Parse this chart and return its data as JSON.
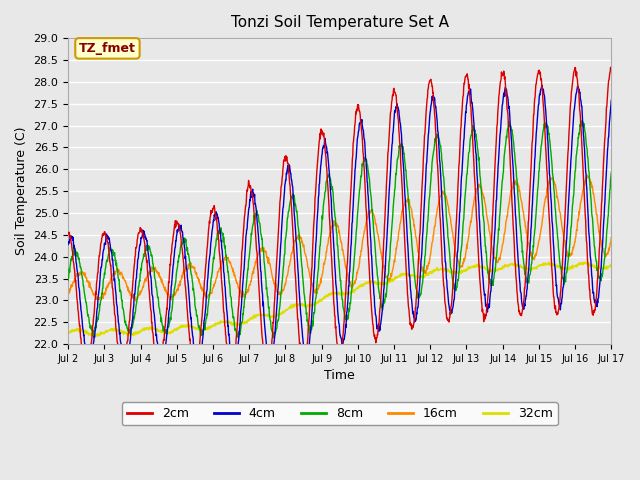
{
  "title": "Tonzi Soil Temperature Set A",
  "xlabel": "Time",
  "ylabel": "Soil Temperature (C)",
  "ylim": [
    22.0,
    29.0
  ],
  "yticks": [
    22.0,
    22.5,
    23.0,
    23.5,
    24.0,
    24.5,
    25.0,
    25.5,
    26.0,
    26.5,
    27.0,
    27.5,
    28.0,
    28.5,
    29.0
  ],
  "xtick_labels": [
    "Jul 2",
    "Jul 3",
    "Jul 4",
    "Jul 5",
    "Jul 6",
    "Jul 7",
    "Jul 8",
    "Jul 9",
    "Jul 10",
    "Jul 11",
    "Jul 12",
    "Jul 13",
    "Jul 14",
    "Jul 15",
    "Jul 16",
    "Jul 17"
  ],
  "annotation_text": "TZ_fmet",
  "annotation_bg": "#ffffcc",
  "annotation_border": "#cc9900",
  "line_colors": {
    "2cm": "#dd0000",
    "4cm": "#0000cc",
    "8cm": "#00aa00",
    "16cm": "#ff8800",
    "32cm": "#dddd00"
  },
  "legend_labels": [
    "2cm",
    "4cm",
    "8cm",
    "16cm",
    "32cm"
  ],
  "bg_color": "#e8e8e8",
  "plot_bg_color": "#e8e8e8",
  "n_days": 15,
  "samples_per_day": 96,
  "start_day": 2
}
